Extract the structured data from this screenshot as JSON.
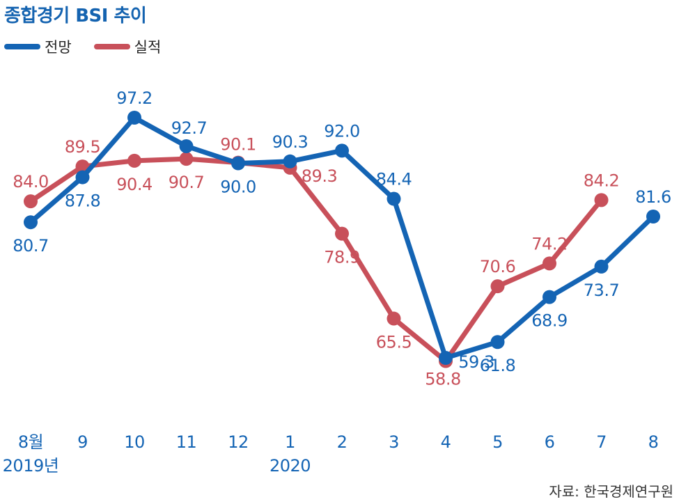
{
  "title": "종합경기 BSI 추이",
  "source": "자료: 한국경제연구원",
  "colors": {
    "forecast": "#1464b4",
    "actual": "#c8505a",
    "axis_text": "#1464b4"
  },
  "legend": [
    {
      "label": "전망",
      "color": "#1464b4"
    },
    {
      "label": "실적",
      "color": "#c8505a"
    }
  ],
  "chart_data": {
    "type": "line",
    "title": "종합경기 BSI 추이",
    "categories": [
      "8월",
      "9",
      "10",
      "11",
      "12",
      "1",
      "2",
      "3",
      "4",
      "5",
      "6",
      "7",
      "8"
    ],
    "year_labels": [
      {
        "category": "8월",
        "label": "2019년"
      },
      {
        "category": "1",
        "label": "2020"
      }
    ],
    "series": [
      {
        "name": "전망",
        "color": "#1464b4",
        "values": [
          80.7,
          87.8,
          97.2,
          92.7,
          90.0,
          90.3,
          92.0,
          84.4,
          59.3,
          61.8,
          68.9,
          73.7,
          81.6
        ]
      },
      {
        "name": "실적",
        "color": "#c8505a",
        "values": [
          84.0,
          89.5,
          90.4,
          90.7,
          90.1,
          89.3,
          78.9,
          65.5,
          58.8,
          70.6,
          74.2,
          84.2,
          null
        ]
      }
    ],
    "grid": false,
    "legend_position": "top-left"
  }
}
